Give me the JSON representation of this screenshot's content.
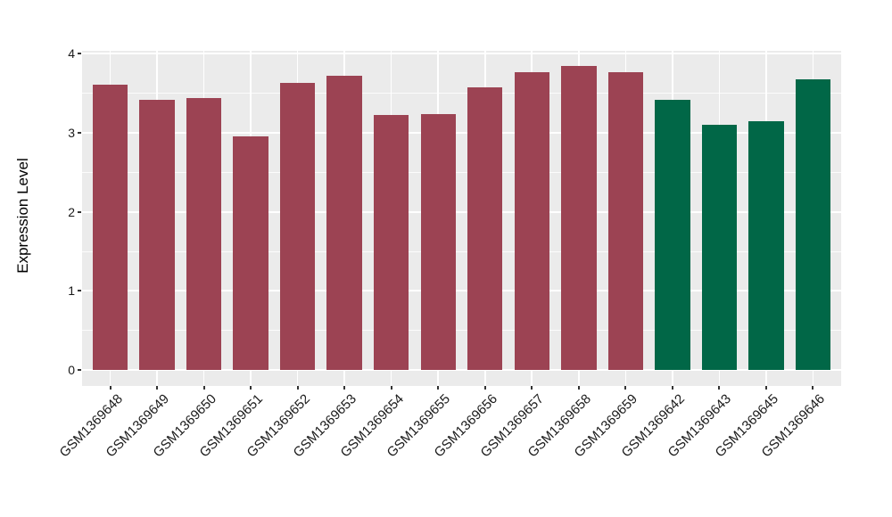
{
  "chart_data": {
    "type": "bar",
    "title": "",
    "xlabel": "",
    "ylabel": "Expression Level",
    "ylim": [
      0,
      4
    ],
    "yticks": [
      "0",
      "1",
      "2",
      "3",
      "4"
    ],
    "grid": true,
    "legend": "none",
    "panel_background": "#EBEBEB",
    "gridline_color": "#FFFFFF",
    "outer_background": "#FFFFFF",
    "axis_text_color": "#1A1A1A",
    "x_tick_rotation_deg": 45,
    "group_colors": [
      "#9C4353",
      "#016747"
    ],
    "categories": [
      "GSM1369648",
      "GSM1369649",
      "GSM1369650",
      "GSM1369651",
      "GSM1369652",
      "GSM1369653",
      "GSM1369654",
      "GSM1369655",
      "GSM1369656",
      "GSM1369657",
      "GSM1369658",
      "GSM1369659",
      "GSM1369642",
      "GSM1369643",
      "GSM1369645",
      "GSM1369646"
    ],
    "bars": [
      {
        "label": "GSM1369648",
        "value": 3.61,
        "group": 0
      },
      {
        "label": "GSM1369649",
        "value": 3.42,
        "group": 0
      },
      {
        "label": "GSM1369650",
        "value": 3.44,
        "group": 0
      },
      {
        "label": "GSM1369651",
        "value": 2.95,
        "group": 0
      },
      {
        "label": "GSM1369652",
        "value": 3.63,
        "group": 0
      },
      {
        "label": "GSM1369653",
        "value": 3.72,
        "group": 0
      },
      {
        "label": "GSM1369654",
        "value": 3.22,
        "group": 0
      },
      {
        "label": "GSM1369655",
        "value": 3.24,
        "group": 0
      },
      {
        "label": "GSM1369656",
        "value": 3.57,
        "group": 0
      },
      {
        "label": "GSM1369657",
        "value": 3.76,
        "group": 0
      },
      {
        "label": "GSM1369658",
        "value": 3.84,
        "group": 0
      },
      {
        "label": "GSM1369659",
        "value": 3.76,
        "group": 0
      },
      {
        "label": "GSM1369642",
        "value": 3.42,
        "group": 1
      },
      {
        "label": "GSM1369643",
        "value": 3.1,
        "group": 1
      },
      {
        "label": "GSM1369645",
        "value": 3.14,
        "group": 1
      },
      {
        "label": "GSM1369646",
        "value": 3.67,
        "group": 1
      }
    ]
  }
}
